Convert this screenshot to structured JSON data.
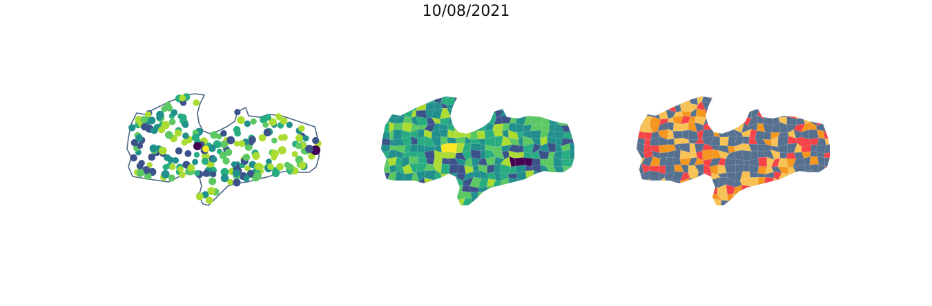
{
  "figure": {
    "title": "10/08/2021"
  },
  "colors": {
    "outline": "#4a6582",
    "viridis": [
      "#440154",
      "#3b528b",
      "#21908c",
      "#27ad81",
      "#5cc863",
      "#aadc32",
      "#fde725"
    ],
    "classes": [
      "#56708f",
      "#f8c254",
      "#f5961f",
      "#f64347"
    ]
  },
  "panels": [
    {
      "name": "proportional-symbol-map"
    },
    {
      "name": "choropleth-map"
    },
    {
      "name": "classified-choropleth-map"
    }
  ]
}
